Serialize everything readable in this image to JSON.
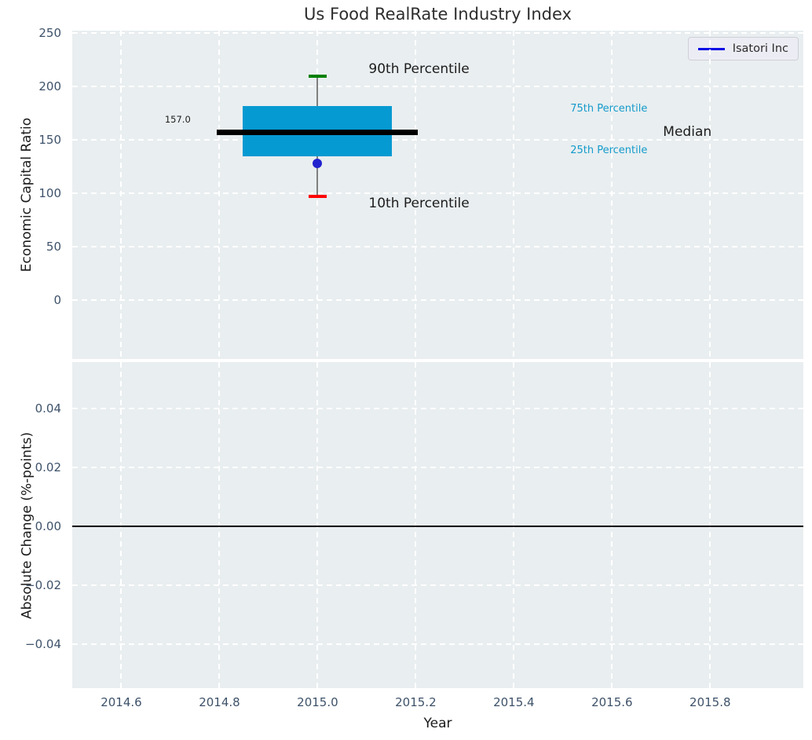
{
  "title": "Us Food RealRate Industry Index",
  "legend": {
    "label": "Isatori Inc",
    "line_color": "#0a0ae6",
    "position": "upper right"
  },
  "colors": {
    "plot_bg": "#e9eef0",
    "grid": "#ffffff",
    "tick": "#3e526a",
    "axis_label": "#1a1a1a",
    "title": "#2e2e2e",
    "box_fill": "#069ad2",
    "median": "#000000",
    "whisker": "#7f7f7f",
    "cap_high": "#008000",
    "cap_low": "#ff0000",
    "marker": "#2222cf",
    "percentile_label": "#149bcb",
    "annotation": "#1c1c1c",
    "zero_line": "#000000"
  },
  "chart_data": [
    {
      "type": "boxplot",
      "title": "Us Food RealRate Industry Index",
      "xlabel": "",
      "ylabel": "Economic Capital Ratio",
      "xlim": [
        2014.5,
        2015.99
      ],
      "ylim": [
        -55,
        252.5
      ],
      "grid": true,
      "legend_entries": [
        "Isatori Inc"
      ],
      "legend_position": "upper right",
      "yticks": [
        {
          "v": 0,
          "label": "0"
        },
        {
          "v": 50,
          "label": "50"
        },
        {
          "v": 100,
          "label": "100"
        },
        {
          "v": 150,
          "label": "150"
        },
        {
          "v": 200,
          "label": "200"
        },
        {
          "v": 250,
          "label": "250"
        }
      ],
      "box": {
        "x": 2015.0,
        "p10": 97,
        "q1": 135,
        "median": 157,
        "q3": 182,
        "p90": 210,
        "median_label": "157.0",
        "box_half_width": 0.152,
        "median_half_width": 0.205,
        "cap_half_width": 0.018
      },
      "series": [
        {
          "name": "Isatori Inc",
          "type": "scatter",
          "x": [
            2015.0
          ],
          "y": [
            128
          ]
        }
      ],
      "annotations": [
        {
          "text": "90th Percentile",
          "x": 2015.104,
          "y": 216,
          "ha": "left",
          "size": 17,
          "color_key": "annotation"
        },
        {
          "text": "10th Percentile",
          "x": 2015.104,
          "y": 90,
          "ha": "left",
          "size": 17,
          "color_key": "annotation"
        },
        {
          "text": "75th Percentile",
          "x": 2015.515,
          "y": 179,
          "ha": "left",
          "size": 13,
          "color_key": "percentile_label"
        },
        {
          "text": "25th Percentile",
          "x": 2015.515,
          "y": 140,
          "ha": "left",
          "size": 13,
          "color_key": "percentile_label"
        },
        {
          "text": "Median",
          "x": 2015.704,
          "y": 157,
          "ha": "left",
          "size": 17,
          "color_key": "annotation"
        },
        {
          "text": "157.0",
          "x": 2014.715,
          "y": 169,
          "ha": "center",
          "size": 11.5,
          "color_key": "annotation"
        }
      ]
    },
    {
      "type": "line",
      "xlabel": "Year",
      "ylabel": "Absolute Change (%-points)",
      "xlim": [
        2014.5,
        2015.99
      ],
      "ylim": [
        -0.055,
        0.0557
      ],
      "grid": true,
      "yticks": [
        {
          "v": 0.04,
          "label": "0.04"
        },
        {
          "v": 0.02,
          "label": "0.02"
        },
        {
          "v": 0.0,
          "label": "0.00"
        },
        {
          "v": -0.02,
          "label": "−0.02"
        },
        {
          "v": -0.04,
          "label": "−0.04"
        }
      ],
      "xticks": [
        {
          "v": 2014.6,
          "label": "2014.6"
        },
        {
          "v": 2014.8,
          "label": "2014.8"
        },
        {
          "v": 2015.0,
          "label": "2015.0"
        },
        {
          "v": 2015.2,
          "label": "2015.2"
        },
        {
          "v": 2015.4,
          "label": "2015.4"
        },
        {
          "v": 2015.6,
          "label": "2015.6"
        },
        {
          "v": 2015.8,
          "label": "2015.8"
        }
      ],
      "zero_line": {
        "y": 0.0
      },
      "series": []
    }
  ]
}
